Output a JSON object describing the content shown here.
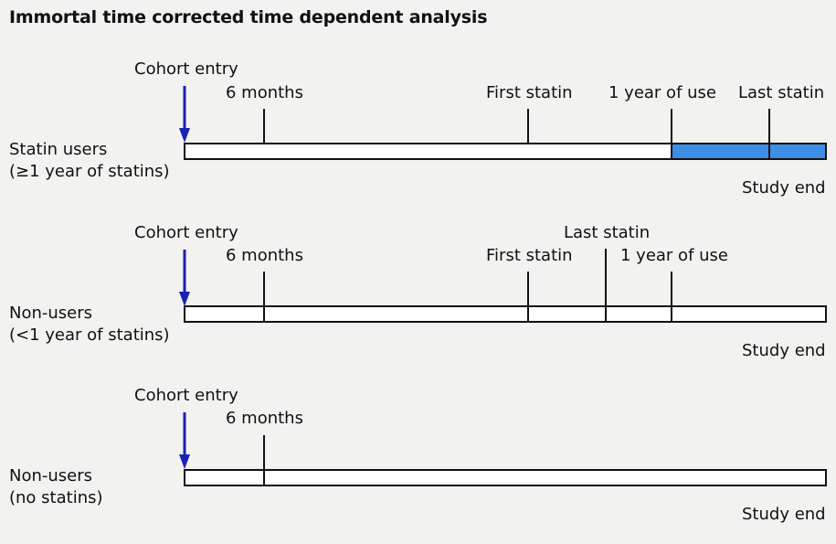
{
  "title": "Immortal time corrected time dependent analysis",
  "colors": {
    "arrow": "#1a22b4",
    "exposed_fill": "#3d8ee6",
    "background": "#f2f2f0"
  },
  "panels": [
    {
      "group_line1": "Statin users",
      "group_line2": "(≥1 year of statins)",
      "cohort_entry": "Cohort entry",
      "six_months": "6 months",
      "first_statin": "First statin",
      "one_year": "1 year of use",
      "last_statin": "Last statin",
      "study_end": "Study end"
    },
    {
      "group_line1": "Non-users",
      "group_line2": "(<1 year of statins)",
      "cohort_entry": "Cohort entry",
      "six_months": "6 months",
      "first_statin": "First statin",
      "last_statin": "Last statin",
      "one_year": "1 year of use",
      "study_end": "Study end"
    },
    {
      "group_line1": "Non-users",
      "group_line2": "(no  statins)",
      "cohort_entry": "Cohort entry",
      "six_months": "6 months",
      "study_end": "Study end"
    }
  ]
}
